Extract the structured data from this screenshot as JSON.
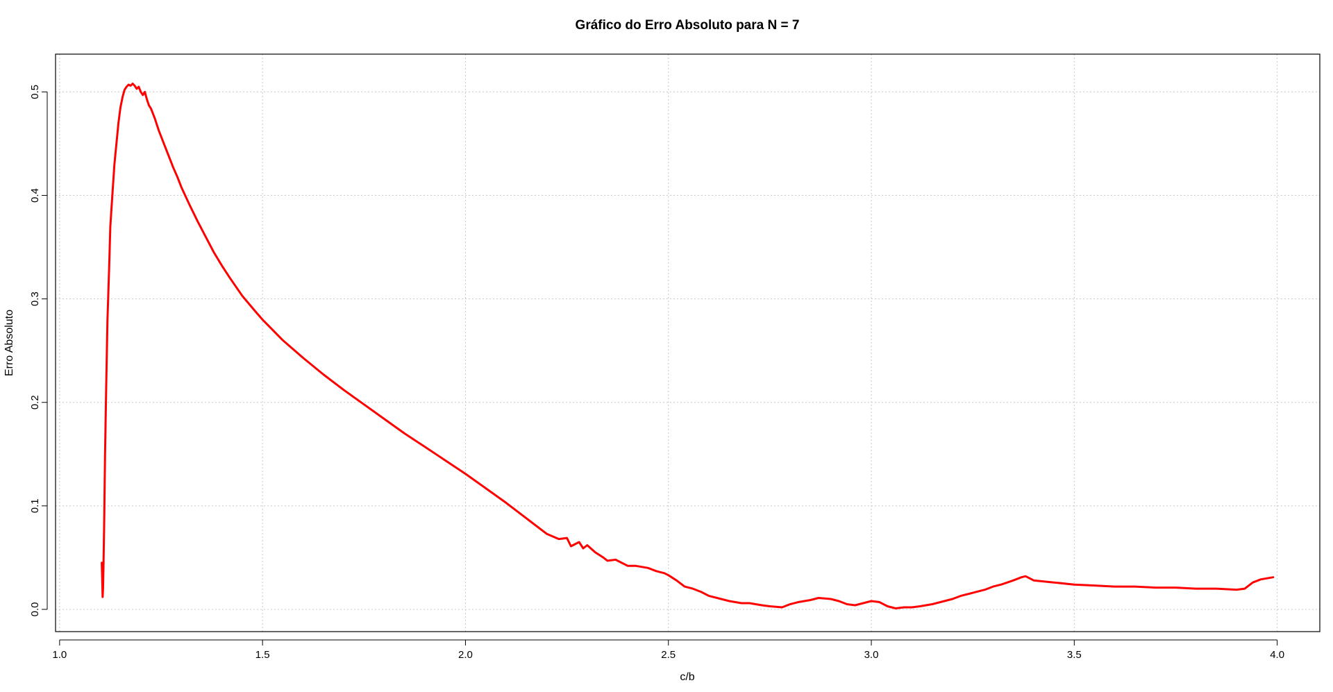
{
  "chart_data": {
    "type": "line",
    "title": "Gráfico do Erro Absoluto para N = 7",
    "xlabel": "c/b",
    "ylabel": "Erro Absoluto",
    "xlim": [
      0.99,
      4.105
    ],
    "ylim": [
      -0.0215,
      0.5365
    ],
    "x_ticks": [
      1.0,
      1.5,
      2.0,
      2.5,
      3.0,
      3.5,
      4.0
    ],
    "x_tick_labels": [
      "1.0",
      "1.5",
      "2.0",
      "2.5",
      "3.0",
      "3.5",
      "4.0"
    ],
    "y_ticks": [
      0.0,
      0.1,
      0.2,
      0.3,
      0.4,
      0.5
    ],
    "y_tick_labels": [
      "0.0",
      "0.1",
      "0.2",
      "0.3",
      "0.4",
      "0.5"
    ],
    "grid": true,
    "grid_style": "dotted",
    "series": [
      {
        "color": "#ff0000",
        "x": [
          1.104,
          1.105,
          1.106,
          1.107,
          1.108,
          1.11,
          1.112,
          1.115,
          1.118,
          1.122,
          1.125,
          1.13,
          1.135,
          1.14,
          1.145,
          1.15,
          1.155,
          1.16,
          1.165,
          1.17,
          1.175,
          1.18,
          1.185,
          1.19,
          1.195,
          1.2,
          1.205,
          1.21,
          1.215,
          1.22,
          1.225,
          1.23,
          1.235,
          1.24,
          1.245,
          1.25,
          1.26,
          1.27,
          1.28,
          1.29,
          1.3,
          1.32,
          1.34,
          1.36,
          1.38,
          1.4,
          1.42,
          1.45,
          1.48,
          1.5,
          1.55,
          1.6,
          1.65,
          1.7,
          1.75,
          1.8,
          1.85,
          1.9,
          1.95,
          2.0,
          2.05,
          2.1,
          2.15,
          2.2,
          2.23,
          2.25,
          2.26,
          2.28,
          2.29,
          2.3,
          2.32,
          2.34,
          2.35,
          2.37,
          2.4,
          2.42,
          2.45,
          2.47,
          2.49,
          2.5,
          2.52,
          2.54,
          2.56,
          2.58,
          2.6,
          2.62,
          2.65,
          2.68,
          2.7,
          2.73,
          2.75,
          2.78,
          2.8,
          2.82,
          2.85,
          2.87,
          2.9,
          2.92,
          2.94,
          2.96,
          2.98,
          3.0,
          3.02,
          3.04,
          3.06,
          3.08,
          3.1,
          3.12,
          3.15,
          3.18,
          3.2,
          3.22,
          3.25,
          3.28,
          3.3,
          3.32,
          3.35,
          3.37,
          3.38,
          3.4,
          3.45,
          3.5,
          3.55,
          3.6,
          3.65,
          3.7,
          3.75,
          3.8,
          3.85,
          3.9,
          3.92,
          3.94,
          3.96,
          3.99
        ],
        "y": [
          0.045,
          0.03,
          0.012,
          0.02,
          0.04,
          0.09,
          0.15,
          0.22,
          0.28,
          0.33,
          0.37,
          0.4,
          0.43,
          0.45,
          0.47,
          0.485,
          0.495,
          0.502,
          0.505,
          0.507,
          0.506,
          0.508,
          0.506,
          0.503,
          0.505,
          0.5,
          0.497,
          0.5,
          0.493,
          0.487,
          0.484,
          0.479,
          0.474,
          0.468,
          0.462,
          0.457,
          0.447,
          0.437,
          0.427,
          0.418,
          0.408,
          0.391,
          0.375,
          0.36,
          0.345,
          0.332,
          0.32,
          0.303,
          0.289,
          0.28,
          0.26,
          0.243,
          0.227,
          0.212,
          0.198,
          0.184,
          0.17,
          0.157,
          0.144,
          0.131,
          0.117,
          0.103,
          0.088,
          0.073,
          0.068,
          0.069,
          0.061,
          0.065,
          0.059,
          0.062,
          0.055,
          0.05,
          0.047,
          0.048,
          0.042,
          0.042,
          0.04,
          0.037,
          0.035,
          0.033,
          0.028,
          0.022,
          0.02,
          0.017,
          0.013,
          0.011,
          0.008,
          0.006,
          0.006,
          0.004,
          0.003,
          0.002,
          0.005,
          0.007,
          0.009,
          0.011,
          0.01,
          0.008,
          0.005,
          0.004,
          0.006,
          0.008,
          0.007,
          0.003,
          0.001,
          0.002,
          0.002,
          0.003,
          0.005,
          0.008,
          0.01,
          0.013,
          0.016,
          0.019,
          0.022,
          0.024,
          0.028,
          0.031,
          0.032,
          0.028,
          0.026,
          0.024,
          0.023,
          0.022,
          0.022,
          0.021,
          0.021,
          0.02,
          0.02,
          0.019,
          0.02,
          0.026,
          0.029,
          0.031
        ]
      }
    ]
  }
}
